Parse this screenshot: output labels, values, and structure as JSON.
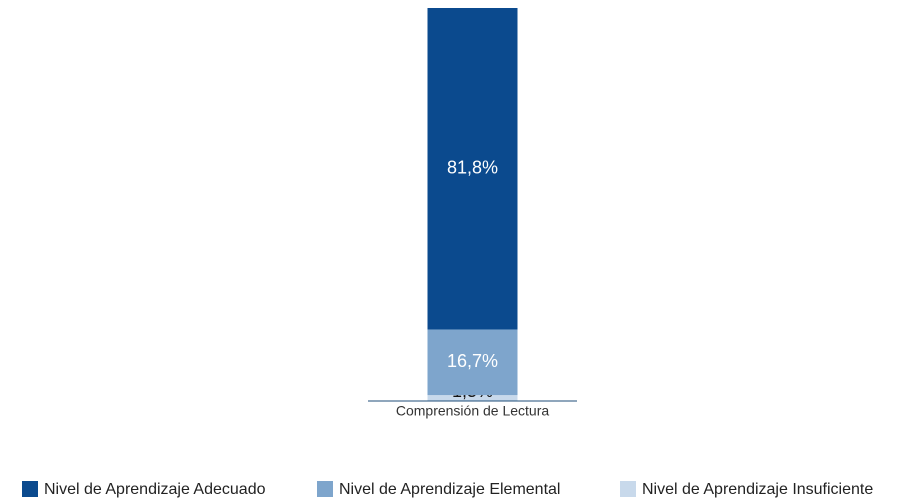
{
  "chart_data": {
    "type": "stacked_bar",
    "categories": [
      "Comprensión de Lectura"
    ],
    "series": [
      {
        "name": "Nivel de Aprendizaje Adecuado",
        "color": "#0b4a8e",
        "values": [
          81.8
        ],
        "value_labels": [
          "81,8%"
        ]
      },
      {
        "name": "Nivel de Aprendizaje Elemental",
        "color": "#7ea5cc",
        "values": [
          16.7
        ],
        "value_labels": [
          "16,7%"
        ]
      },
      {
        "name": "Nivel de Aprendizaje Insuficiente",
        "color": "#c8d9eb",
        "values": [
          1.5
        ],
        "value_labels": [
          "1,5%"
        ]
      }
    ]
  }
}
